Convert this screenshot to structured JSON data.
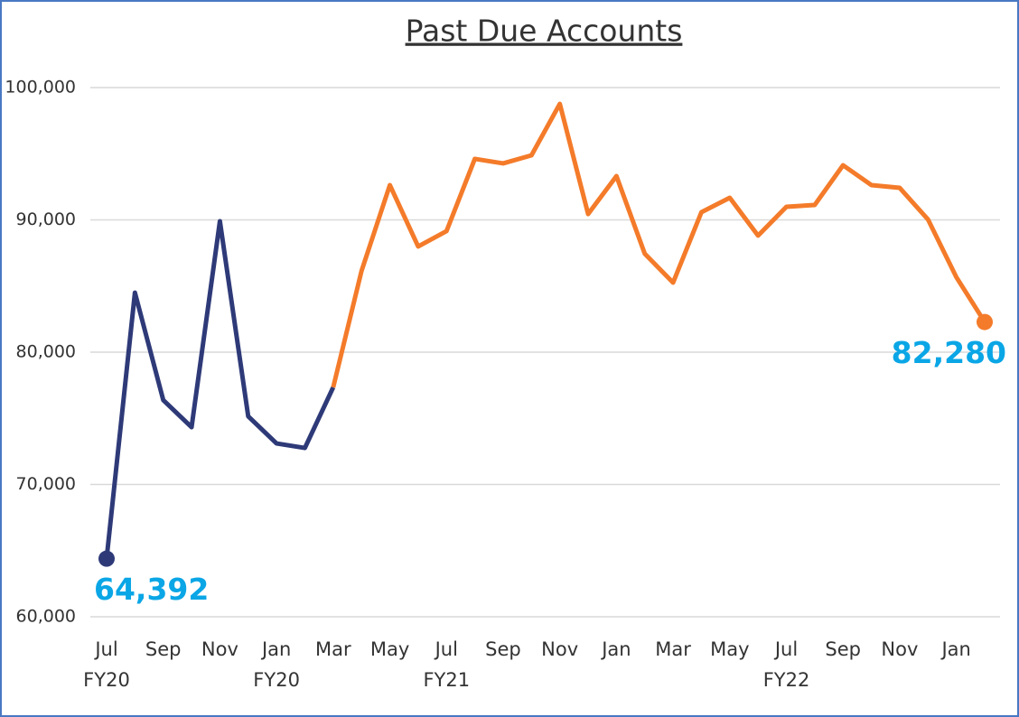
{
  "chart_data": {
    "type": "line",
    "title": "Past Due Accounts",
    "categories": [
      "Jul",
      null,
      "Sep",
      null,
      "Nov",
      null,
      "Jan",
      null,
      "Mar",
      null,
      "May",
      null,
      "Jul",
      null,
      "Sep",
      null,
      "Nov",
      null,
      "Jan",
      null,
      "Mar",
      null,
      "May",
      null,
      "Jul",
      null,
      "Sep",
      null,
      "Nov",
      null,
      "Jan",
      null
    ],
    "fiscal_years": [
      "FY20",
      null,
      null,
      null,
      null,
      null,
      "FY20",
      null,
      null,
      null,
      null,
      null,
      "FY21",
      null,
      null,
      null,
      null,
      null,
      null,
      null,
      null,
      null,
      null,
      null,
      "FY22",
      null,
      null,
      null,
      null,
      null,
      null,
      null
    ],
    "series": [
      {
        "color": "#2e3a78",
        "values": [
          64392,
          84500,
          76380,
          74330,
          89900,
          75150,
          73100,
          72760,
          77340,
          null,
          null,
          null,
          null,
          null,
          null,
          null,
          null,
          null,
          null,
          null,
          null,
          null,
          null,
          null,
          null,
          null,
          null,
          null,
          null,
          null,
          null,
          null
        ],
        "value_labels": [
          "64,392",
          null,
          null,
          null,
          null,
          null,
          null,
          null,
          null,
          null,
          null,
          null,
          null,
          null,
          null,
          null,
          null,
          null,
          null,
          null,
          null,
          null,
          null,
          null,
          null,
          null,
          null,
          null,
          null,
          null,
          null,
          null
        ]
      },
      {
        "color": "#f47b2a",
        "values": [
          null,
          null,
          null,
          null,
          null,
          null,
          null,
          null,
          77340,
          86140,
          92630,
          87990,
          89150,
          94610,
          94270,
          94880,
          98770,
          90440,
          93310,
          87440,
          85260,
          90580,
          91670,
          88810,
          90990,
          91130,
          94130,
          92630,
          92420,
          90030,
          85670,
          82280
        ],
        "value_labels": [
          null,
          null,
          null,
          null,
          null,
          null,
          null,
          null,
          null,
          null,
          null,
          null,
          null,
          null,
          null,
          null,
          null,
          null,
          null,
          null,
          null,
          null,
          null,
          null,
          null,
          null,
          null,
          null,
          null,
          null,
          null,
          "82,280"
        ]
      }
    ],
    "value_label_color": "#0aa6e6",
    "ylim": [
      60000,
      100000
    ],
    "yticks": [
      {
        "value": 60000,
        "label": "60,000"
      },
      {
        "value": 70000,
        "label": "70,000"
      },
      {
        "value": 80000,
        "label": "80,000"
      },
      {
        "value": 90000,
        "label": "90,000"
      },
      {
        "value": 100000,
        "label": "100,000"
      }
    ],
    "grid": true
  }
}
